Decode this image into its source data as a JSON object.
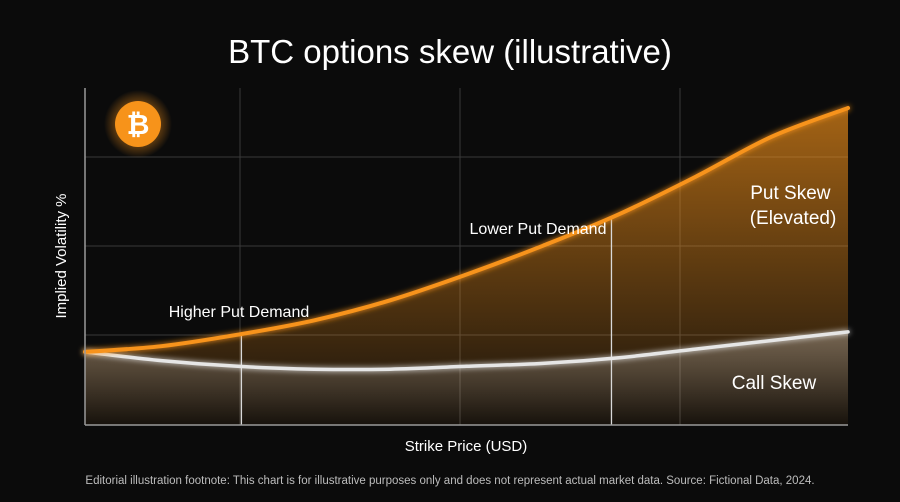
{
  "colors": {
    "background": "#0b0b0b",
    "put_line": "#f7931a",
    "call_line": "#e6e6e6",
    "grid": "#3a3a3a",
    "bitcoin_badge": "#f7931a"
  },
  "logo": {
    "icon": "bitcoin-icon",
    "glyph": "₿"
  },
  "chart_data": {
    "type": "line",
    "title": "BTC options skew (illustrative)",
    "xlabel": "Strike Price (USD)",
    "ylabel": "Implied Volatility %",
    "grid": true,
    "series": [
      {
        "name": "Put Skew\n(Elevated)",
        "label_lines": [
          "Put Skew",
          "(Elevated)"
        ],
        "color": "#f7931a",
        "x": [
          0,
          0.1,
          0.2,
          0.3,
          0.4,
          0.5,
          0.6,
          0.7,
          0.8,
          0.9,
          1.0
        ],
        "values": [
          0.15,
          0.17,
          0.21,
          0.26,
          0.33,
          0.42,
          0.52,
          0.63,
          0.76,
          0.9,
          1.0
        ]
      },
      {
        "name": "Call Skew",
        "color": "#e6e6e6",
        "x": [
          0,
          0.1,
          0.2,
          0.3,
          0.4,
          0.5,
          0.6,
          0.7,
          0.8,
          0.9,
          1.0
        ],
        "values": [
          0.15,
          0.12,
          0.1,
          0.09,
          0.09,
          0.1,
          0.11,
          0.13,
          0.16,
          0.19,
          0.22
        ]
      }
    ],
    "annotations": [
      {
        "text": "Higher Put Demand",
        "x": 0.205
      },
      {
        "text": "Lower Put Demand",
        "x": 0.69
      }
    ]
  },
  "footnote": "Editorial illustration footnote: This chart is for illustrative purposes only and does not represent actual market data. Source: Fictional Data, 2024."
}
